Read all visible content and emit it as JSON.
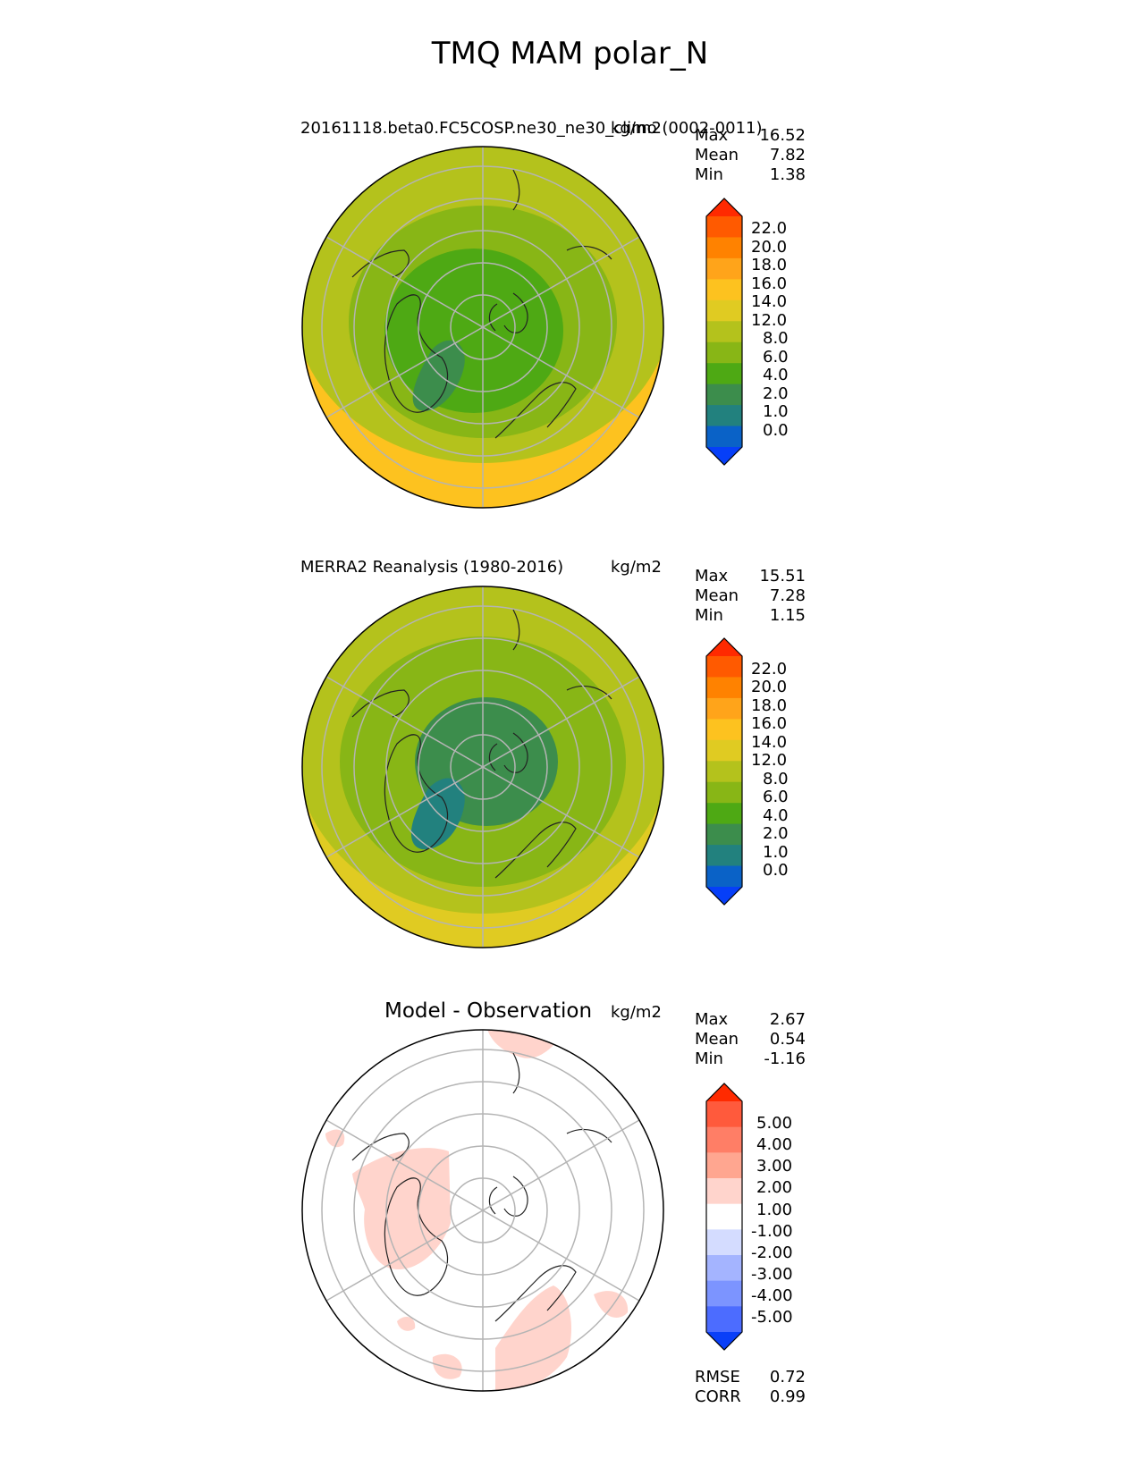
{
  "title": "TMQ MAM polar_N",
  "panels": [
    {
      "label": "20161118.beta0.FC5COSP.ne30_ne30_climo (0002-0011)",
      "units": "kg/m2",
      "stats": [
        {
          "name": "Max",
          "value": "16.52"
        },
        {
          "name": "Mean",
          "value": "7.82"
        },
        {
          "name": "Min",
          "value": "1.38"
        }
      ],
      "colorbar": {
        "ticks": [
          "22.0",
          "20.0",
          "18.0",
          "16.0",
          "14.0",
          "12.0",
          "8.0",
          "6.0",
          "4.0",
          "2.0",
          "1.0",
          "0.0"
        ],
        "colors": [
          "#ff2a00",
          "#ff5a00",
          "#ff8200",
          "#ffa41a",
          "#fdc21f",
          "#e0cb22",
          "#b4c21c",
          "#88b616",
          "#4ea914",
          "#3c8d4c",
          "#22817e",
          "#0a62c7",
          "#063ff8"
        ]
      },
      "fill_levels": [
        {
          "band": "south-outer",
          "value": 14.0
        },
        {
          "band": "mid-latitude",
          "value": 9.0
        },
        {
          "band": "arctic-ring",
          "value": 6.5
        },
        {
          "band": "polar-cap",
          "value": 4.5
        },
        {
          "band": "greenland-min",
          "value": 2.5
        }
      ]
    },
    {
      "label": "MERRA2 Reanalysis (1980-2016)",
      "units": "kg/m2",
      "stats": [
        {
          "name": "Max",
          "value": "15.51"
        },
        {
          "name": "Mean",
          "value": "7.28"
        },
        {
          "name": "Min",
          "value": "1.15"
        }
      ],
      "colorbar": {
        "ticks": [
          "22.0",
          "20.0",
          "18.0",
          "16.0",
          "14.0",
          "12.0",
          "8.0",
          "6.0",
          "4.0",
          "2.0",
          "1.0",
          "0.0"
        ],
        "colors": [
          "#ff2a00",
          "#ff5a00",
          "#ff8200",
          "#ffa41a",
          "#fdc21f",
          "#e0cb22",
          "#b4c21c",
          "#88b616",
          "#4ea914",
          "#3c8d4c",
          "#22817e",
          "#0a62c7",
          "#063ff8"
        ]
      },
      "fill_levels": [
        {
          "band": "south-outer",
          "value": 13.0
        },
        {
          "band": "mid-latitude",
          "value": 9.0
        },
        {
          "band": "arctic-ring",
          "value": 6.0
        },
        {
          "band": "polar-cap",
          "value": 3.0
        },
        {
          "band": "greenland-min",
          "value": 1.5
        }
      ]
    },
    {
      "label": "Model - Observation",
      "units": "kg/m2",
      "stats": [
        {
          "name": "Max",
          "value": "2.67"
        },
        {
          "name": "Mean",
          "value": "0.54"
        },
        {
          "name": "Min",
          "value": "-1.16"
        }
      ],
      "colorbar": {
        "ticks": [
          "5.00",
          "4.00",
          "3.00",
          "2.00",
          "1.00",
          "-1.00",
          "-2.00",
          "-3.00",
          "-4.00",
          "-5.00"
        ],
        "colors": [
          "#ff2a00",
          "#ff5a3c",
          "#ff7e66",
          "#ffa690",
          "#ffd4cc",
          "#ffffff",
          "#d4dcff",
          "#a4b4ff",
          "#7c94ff",
          "#4c6cff",
          "#0a3ff8"
        ]
      },
      "metrics": [
        {
          "name": "RMSE",
          "value": "0.72"
        },
        {
          "name": "CORR",
          "value": "0.99"
        }
      ]
    }
  ]
}
